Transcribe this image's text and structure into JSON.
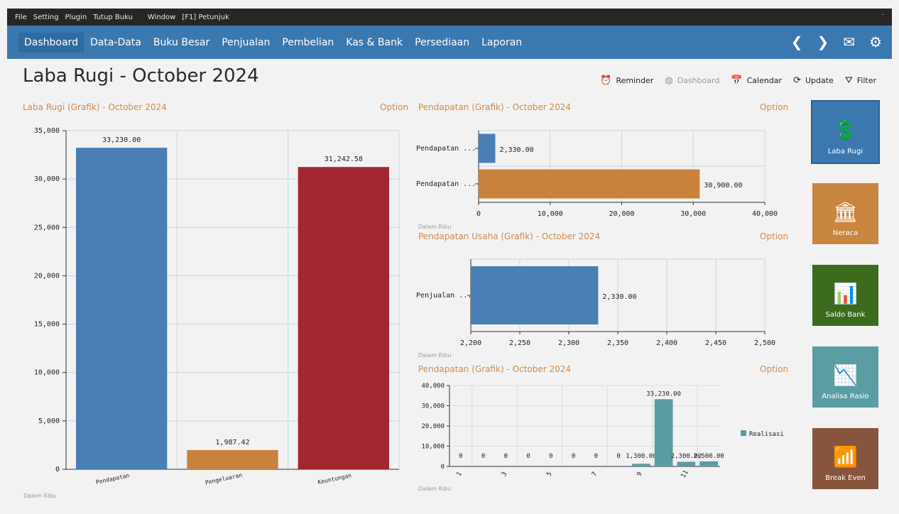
{
  "menubar": {
    "items": [
      "File",
      "Setting",
      "Plugin",
      "Tutup Buku",
      "Window",
      "[F1] Petunjuk"
    ],
    "dash": "–"
  },
  "nav": {
    "tabs": [
      "Dashboard",
      "Data-Data",
      "Buku Besar",
      "Penjualan",
      "Pembelian",
      "Kas & Bank",
      "Persediaan",
      "Laporan"
    ],
    "icons": [
      "chevron-left-icon",
      "chevron-right-icon",
      "mail-icon",
      "gear-icon"
    ],
    "icon_glyphs": [
      "❮",
      "❯",
      "✉",
      "⚙"
    ]
  },
  "page": {
    "title": "Laba Rugi - October 2024"
  },
  "toolbar": {
    "items": [
      {
        "label": "Reminder",
        "icon": "alarm-icon",
        "glyph": "⏰"
      },
      {
        "label": "Dashboard",
        "icon": "dashboard-icon",
        "glyph": "◍"
      },
      {
        "label": "Calendar",
        "icon": "calendar-icon",
        "glyph": "📅"
      },
      {
        "label": "Update",
        "icon": "refresh-icon",
        "glyph": "⟳"
      },
      {
        "label": "Filter",
        "icon": "filter-icon",
        "glyph": "⛛"
      }
    ]
  },
  "panels": {
    "p1": {
      "title": "Laba Rugi (Grafik) - October 2024",
      "option": "Option",
      "unit": "Dalam Ribu"
    },
    "p2": {
      "title": "Pendapatan (Grafik) - October 2024",
      "option": "Option",
      "unit": "Dalam Ribu"
    },
    "p3": {
      "title": "Pendapatan Usaha (Grafik) - October 2024",
      "option": "Option",
      "unit": "Dalam Ribu"
    },
    "p4": {
      "title": "Pendapatan (Grafik) - October 2024",
      "option": "Option",
      "unit": "Dalam Ribu"
    }
  },
  "tiles": [
    {
      "label": "Laba Rugi",
      "color": "#3c78b0",
      "icon": "money-chart-icon",
      "glyph": "💲"
    },
    {
      "label": "Neraca",
      "color": "#c8863e",
      "icon": "bank-icon",
      "glyph": "🏛"
    },
    {
      "label": "Saldo Bank",
      "color": "#3c6b1e",
      "icon": "bank-chart-icon",
      "glyph": "📊"
    },
    {
      "label": "Analisa Rasio",
      "color": "#5a9ea3",
      "icon": "ratio-icon",
      "glyph": "📉"
    },
    {
      "label": "Break Even",
      "color": "#87553d",
      "icon": "break-even-icon",
      "glyph": "📶"
    }
  ],
  "colors": {
    "blue": "#4a7fb4",
    "orange": "#c9823c",
    "red": "#a32733",
    "teal": "#5b9ca2"
  },
  "chart_data": [
    {
      "type": "bar",
      "title": "Laba Rugi (Grafik) - October 2024",
      "categories": [
        "Pendapatan",
        "Pengeluaran",
        "Keuntungan"
      ],
      "values": [
        33230.0,
        1987.42,
        31242.58
      ],
      "value_labels": [
        "33,230.00",
        "1,987.42",
        "31,242.58"
      ],
      "colors": [
        "#4a7fb4",
        "#c9823c",
        "#a32733"
      ],
      "ylim": [
        0,
        35000
      ],
      "yticks": [
        0,
        5000,
        10000,
        15000,
        20000,
        25000,
        30000,
        35000
      ],
      "ytick_labels": [
        "0",
        "5,000",
        "10,000",
        "15,000",
        "20,000",
        "25,000",
        "30,000",
        "35,000"
      ],
      "grid": true
    },
    {
      "type": "bar",
      "orientation": "horizontal",
      "title": "Pendapatan (Grafik) - October 2024",
      "categories": [
        "Pendapatan ...",
        "Pendapatan ..."
      ],
      "values": [
        2330.0,
        30900.0
      ],
      "value_labels": [
        "2,330.00",
        "30,900.00"
      ],
      "colors": [
        "#4a7fb4",
        "#c9823c"
      ],
      "xlim": [
        0,
        40000
      ],
      "xticks": [
        0,
        10000,
        20000,
        30000,
        40000
      ],
      "xtick_labels": [
        "0",
        "10,000",
        "20,000",
        "30,000",
        "40,000"
      ],
      "grid": true
    },
    {
      "type": "bar",
      "orientation": "horizontal",
      "title": "Pendapatan Usaha (Grafik) - October 2024",
      "categories": [
        "Penjualan ..."
      ],
      "values": [
        2330.0
      ],
      "value_labels": [
        "2,330.00"
      ],
      "colors": [
        "#4a7fb4"
      ],
      "xlim": [
        2200,
        2500
      ],
      "xticks": [
        2200,
        2250,
        2300,
        2350,
        2400,
        2450,
        2500
      ],
      "xtick_labels": [
        "2,200",
        "2,250",
        "2,300",
        "2,350",
        "2,400",
        "2,450",
        "2,500"
      ],
      "grid": true
    },
    {
      "type": "bar",
      "title": "Pendapatan (Grafik) - October 2024",
      "x": [
        1,
        2,
        3,
        4,
        5,
        6,
        7,
        8,
        9,
        10,
        11,
        12
      ],
      "xtick_labels": [
        "1",
        "",
        "3",
        "",
        "5",
        "",
        "7",
        "",
        "9",
        "",
        "11",
        ""
      ],
      "series": [
        {
          "name": "Realisasi",
          "color": "#5b9ca2",
          "values": [
            0,
            0,
            0,
            0,
            0,
            0,
            0,
            0,
            1300,
            33230,
            2300,
            2500
          ],
          "value_labels": [
            "0",
            "0",
            "0",
            "0",
            "0",
            "0",
            "0",
            "0",
            "1,300.00",
            "33,230.00",
            "2,300.00",
            "2,500.00"
          ]
        }
      ],
      "ylim": [
        0,
        40000
      ],
      "yticks": [
        0,
        10000,
        20000,
        30000,
        40000
      ],
      "ytick_labels": [
        "0",
        "10,000",
        "20,000",
        "30,000",
        "40,000"
      ],
      "legend": "right",
      "grid": true
    }
  ]
}
